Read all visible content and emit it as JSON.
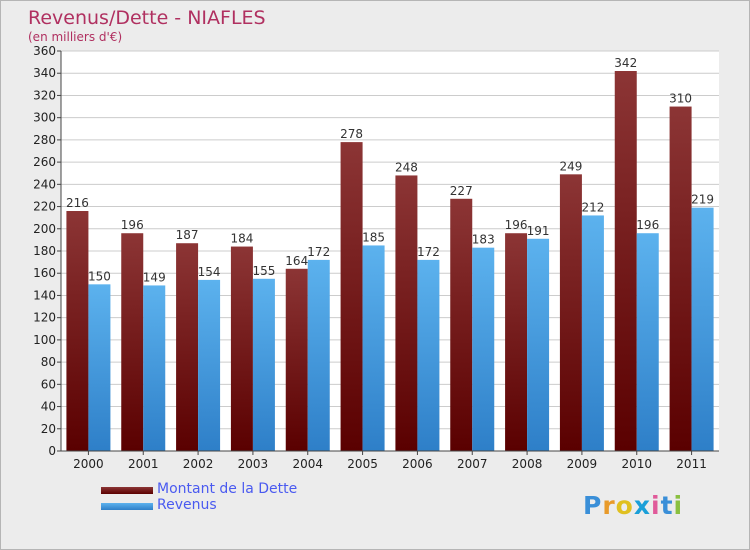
{
  "header": {
    "title": "Revenus/Dette - NIAFLES",
    "subtitle": "(en milliers d'€)"
  },
  "legend": {
    "items": [
      {
        "label": "Montant de la Dette",
        "color": "#6b0f0f"
      },
      {
        "label": "Revenus",
        "color": "#4aa3e6"
      }
    ]
  },
  "logo": {
    "letters": [
      "P",
      "r",
      "o",
      "x",
      "i",
      "t",
      "i"
    ],
    "colors": [
      "#3a8fd8",
      "#e89a2a",
      "#e0c020",
      "#1a9fd8",
      "#e05a9a",
      "#3a8fd8",
      "#8ac040"
    ]
  },
  "colors": {
    "background": "#ececec",
    "plot_background": "#ffffff",
    "grid": "#cccccc",
    "title": "#b03060",
    "debt_top": "#8c3535",
    "debt_bottom": "#5a0000",
    "revenue_top": "#5cb2ee",
    "revenue_bottom": "#2e7fc8"
  },
  "chart_data": {
    "type": "bar",
    "title": "Revenus/Dette - NIAFLES",
    "subtitle": "(en milliers d'€)",
    "categories": [
      "2000",
      "2001",
      "2002",
      "2003",
      "2004",
      "2005",
      "2006",
      "2007",
      "2008",
      "2009",
      "2010",
      "2011"
    ],
    "series": [
      {
        "name": "Montant de la Dette",
        "values": [
          216,
          196,
          187,
          184,
          164,
          278,
          248,
          227,
          196,
          249,
          342,
          310
        ]
      },
      {
        "name": "Revenus",
        "values": [
          150,
          149,
          154,
          155,
          172,
          185,
          172,
          183,
          191,
          212,
          196,
          219
        ]
      }
    ],
    "ylim": [
      0,
      360
    ],
    "ytick_step": 20,
    "grid": true,
    "legend_position": "bottom-left"
  }
}
